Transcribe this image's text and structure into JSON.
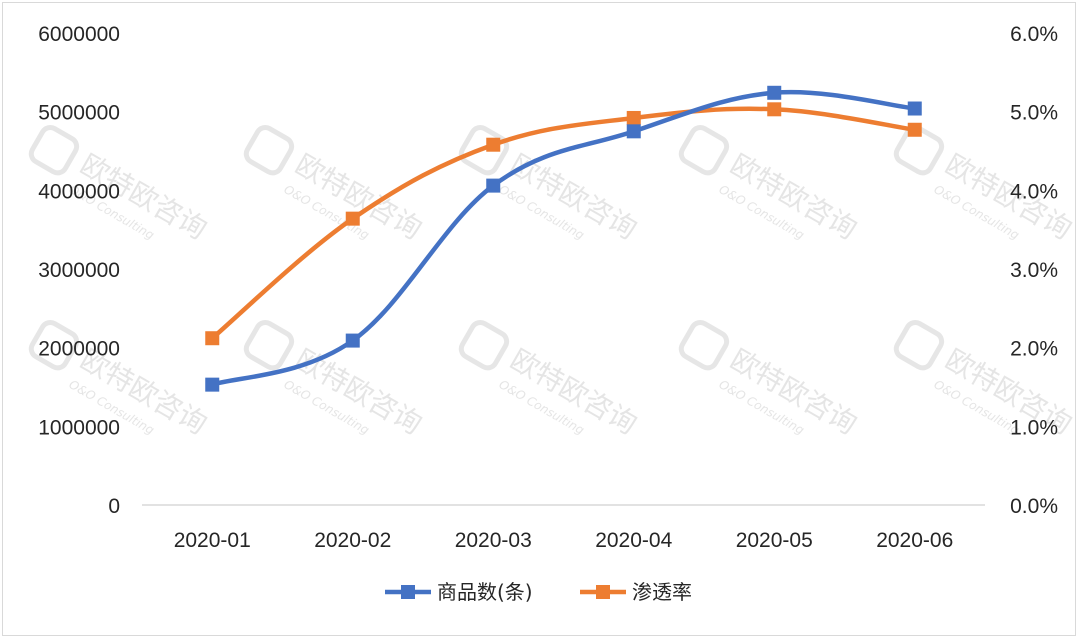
{
  "chart_data": {
    "type": "line",
    "categories": [
      "2020-01",
      "2020-02",
      "2020-03",
      "2020-04",
      "2020-05",
      "2020-06"
    ],
    "series": [
      {
        "name": "商品数(条)",
        "axis": "left",
        "color": "#4472C4",
        "marker": "square",
        "values": [
          1530000,
          2090000,
          4060000,
          4750000,
          5240000,
          5040000
        ]
      },
      {
        "name": "渗透率",
        "axis": "right",
        "color": "#ED7D31",
        "marker": "square",
        "values": [
          0.0212,
          0.0364,
          0.0458,
          0.0492,
          0.0503,
          0.0477
        ]
      }
    ],
    "y_left": {
      "min": 0,
      "max": 6000000,
      "ticks": [
        "0",
        "1000000",
        "2000000",
        "3000000",
        "4000000",
        "5000000",
        "6000000"
      ]
    },
    "y_right": {
      "min": 0,
      "max": 0.06,
      "ticks": [
        "0.0%",
        "1.0%",
        "2.0%",
        "3.0%",
        "4.0%",
        "5.0%",
        "6.0%"
      ]
    },
    "smooth": true,
    "grid": false,
    "legend_position": "bottom"
  },
  "watermark": {
    "text_cn": "欧特欧咨询",
    "text_en": "O&O Consulting"
  }
}
